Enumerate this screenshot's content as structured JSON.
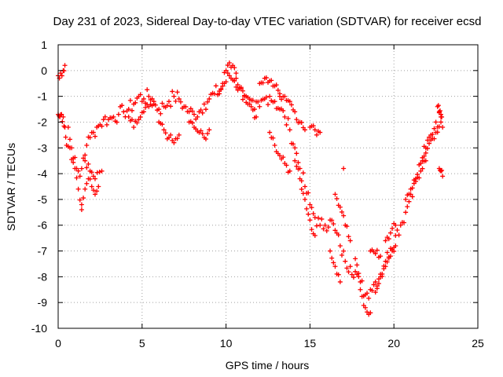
{
  "chart_data": {
    "type": "scatter",
    "title": "Day 231 of 2023, Sidereal Day-to-day VTEC variation (SDTVAR) for receiver ecsd",
    "xlabel": "GPS time / hours",
    "ylabel": "SDTVAR / TECUs",
    "xlim": [
      0,
      25
    ],
    "ylim": [
      -10,
      1
    ],
    "xticks": [
      "0",
      "5",
      "10",
      "15",
      "20",
      "25"
    ],
    "yticks": [
      "1",
      "0",
      "-1",
      "-2",
      "-3",
      "-4",
      "-5",
      "-6",
      "-7",
      "-8",
      "-9",
      "-10"
    ],
    "grid": true,
    "marker": "+",
    "series": [
      {
        "name": "SDTVAR",
        "color": "#ff0000",
        "x": [
          0.0,
          0.1,
          0.2,
          0.3,
          0.4,
          0.5,
          0.7,
          0.9,
          1.1,
          1.3,
          1.5,
          1.7,
          1.9,
          2.1,
          2.3,
          2.5,
          2.7,
          3.0,
          3.3,
          3.6,
          3.9,
          4.2,
          4.5,
          4.8,
          5.1,
          5.4,
          5.7,
          6.0,
          6.3,
          6.6,
          6.9,
          7.2,
          7.5,
          7.8,
          8.1,
          8.4,
          8.7,
          9.0,
          9.3,
          9.6,
          9.9,
          10.2,
          10.5,
          10.8,
          11.1,
          11.4,
          11.7,
          12.0,
          12.3,
          12.6,
          12.9,
          13.2,
          13.5,
          13.8,
          14.1,
          14.4,
          14.7,
          15.0,
          15.3,
          15.6,
          15.9,
          16.2,
          16.5,
          16.8,
          17.1,
          17.4,
          17.7,
          18.0,
          18.3,
          18.6,
          18.9,
          19.2,
          19.5,
          19.8,
          20.1,
          20.4,
          20.7,
          21.0,
          21.3,
          21.6,
          21.9,
          22.2,
          22.5,
          22.8
        ],
        "y": [
          -1.7,
          -1.8,
          -1.7,
          -1.8,
          -2.2,
          -2.9,
          -3.0,
          -3.4,
          -3.8,
          -4.1,
          -3.4,
          -2.9,
          -2.6,
          -2.4,
          -2.2,
          -2.1,
          -1.9,
          -1.9,
          -1.8,
          -1.7,
          -1.6,
          -1.5,
          -1.3,
          -1.0,
          -1.1,
          -1.0,
          -1.3,
          -1.5,
          -1.4,
          -1.2,
          -1.0,
          -1.1,
          -1.4,
          -1.6,
          -1.7,
          -1.6,
          -1.3,
          -1.1,
          -0.9,
          -0.8,
          -0.5,
          -0.2,
          -0.4,
          -0.7,
          -1.0,
          -1.3,
          -1.5,
          -1.4,
          -1.1,
          -1.0,
          -1.2,
          -1.5,
          -1.8,
          -2.3,
          -3.0,
          -3.8,
          -4.5,
          -5.2,
          -5.7,
          -6.0,
          -6.0,
          -5.8,
          -6.2,
          -6.8,
          -7.4,
          -7.6,
          -7.8,
          -8.2,
          -8.7,
          -8.5,
          -8.2,
          -7.9,
          -7.4,
          -6.9,
          -6.4,
          -6.0,
          -5.5,
          -4.8,
          -4.2,
          -3.6,
          -3.0,
          -2.5,
          -2.0,
          -1.8
        ]
      }
    ],
    "extra_segments": [
      {
        "x": [
          0.0,
          0.15,
          0.3,
          0.4
        ],
        "y": [
          -0.2,
          -0.1,
          0.0,
          0.2
        ]
      },
      {
        "x": [
          0.6,
          0.8,
          1.0,
          1.2,
          1.4
        ],
        "y": [
          -2.2,
          -3.0,
          -3.8,
          -4.6,
          -5.4
        ]
      },
      {
        "x": [
          1.4,
          1.6,
          1.8,
          2.0,
          2.2,
          2.4
        ],
        "y": [
          -5.2,
          -4.6,
          -4.2,
          -4.5,
          -4.8,
          -4.5
        ]
      },
      {
        "x": [
          1.6,
          1.9,
          2.2,
          2.6
        ],
        "y": [
          -3.5,
          -3.9,
          -4.2,
          -3.9
        ]
      },
      {
        "x": [
          4.2,
          4.5,
          4.8,
          5.1,
          5.4,
          5.7
        ],
        "y": [
          -1.8,
          -2.2,
          -1.9,
          -1.6,
          -1.4,
          -1.2
        ]
      },
      {
        "x": [
          6.0,
          6.3,
          6.6,
          6.9,
          7.2
        ],
        "y": [
          -2.0,
          -2.3,
          -2.6,
          -2.8,
          -2.5
        ]
      },
      {
        "x": [
          7.8,
          8.1,
          8.4,
          8.7,
          9.0
        ],
        "y": [
          -2.0,
          -2.2,
          -2.4,
          -2.6,
          -2.3
        ]
      },
      {
        "x": [
          9.6,
          9.8,
          10.0,
          10.2,
          10.4,
          10.6
        ],
        "y": [
          -0.9,
          -0.5,
          0.0,
          0.3,
          0.2,
          -0.1
        ]
      },
      {
        "x": [
          10.6,
          10.9,
          11.2,
          11.5,
          11.8
        ],
        "y": [
          -0.3,
          -0.7,
          -1.0,
          -1.4,
          -1.8
        ]
      },
      {
        "x": [
          12.0,
          12.3,
          12.6,
          12.9,
          13.2
        ],
        "y": [
          -0.5,
          -0.3,
          -0.4,
          -0.6,
          -0.9
        ]
      },
      {
        "x": [
          12.6,
          12.9,
          13.2,
          13.5,
          13.8
        ],
        "y": [
          -2.4,
          -2.9,
          -3.3,
          -3.6,
          -3.9
        ]
      },
      {
        "x": [
          13.2,
          13.5,
          13.8,
          14.1,
          14.4,
          14.7
        ],
        "y": [
          -1.0,
          -1.0,
          -1.2,
          -1.6,
          -2.0,
          -2.3
        ]
      },
      {
        "x": [
          14.1,
          14.4,
          14.7,
          15.0,
          15.3
        ],
        "y": [
          -3.5,
          -4.2,
          -5.0,
          -5.8,
          -6.4
        ]
      },
      {
        "x": [
          15.0,
          15.3,
          15.6
        ],
        "y": [
          -2.2,
          -2.3,
          -2.4
        ]
      },
      {
        "x": [
          16.2,
          16.5,
          16.8
        ],
        "y": [
          -7.0,
          -7.6,
          -8.2
        ]
      },
      {
        "x": [
          16.5,
          16.8,
          17.1,
          17.4
        ],
        "y": [
          -4.8,
          -5.3,
          -6.0,
          -6.6
        ]
      },
      {
        "x": [
          17.0
        ],
        "y": [
          -3.8
        ]
      },
      {
        "x": [
          17.7,
          18.0,
          18.3,
          18.6
        ],
        "y": [
          -7.3,
          -8.5,
          -9.2,
          -9.4
        ]
      },
      {
        "x": [
          18.6,
          18.9,
          19.2
        ],
        "y": [
          -7.0,
          -7.1,
          -7.2
        ]
      },
      {
        "x": [
          18.9,
          19.2,
          19.5,
          19.8,
          20.1
        ],
        "y": [
          -8.6,
          -8.0,
          -7.6,
          -7.2,
          -6.8
        ]
      },
      {
        "x": [
          19.5,
          19.8,
          20.1
        ],
        "y": [
          -6.6,
          -6.3,
          -6.0
        ]
      },
      {
        "x": [
          20.7,
          21.0,
          21.3,
          21.6,
          21.9
        ],
        "y": [
          -5.0,
          -4.6,
          -4.3,
          -3.9,
          -3.5
        ]
      },
      {
        "x": [
          21.6,
          21.9,
          22.2,
          22.5,
          22.8
        ],
        "y": [
          -3.6,
          -3.2,
          -2.7,
          -2.4,
          -2.0
        ]
      },
      {
        "x": [
          22.6,
          22.7,
          22.8,
          22.9
        ],
        "y": [
          -1.4,
          -1.6,
          -1.7,
          -2.2
        ]
      },
      {
        "x": [
          22.7,
          22.8,
          22.9
        ],
        "y": [
          -3.8,
          -3.9,
          -4.1
        ]
      }
    ]
  }
}
